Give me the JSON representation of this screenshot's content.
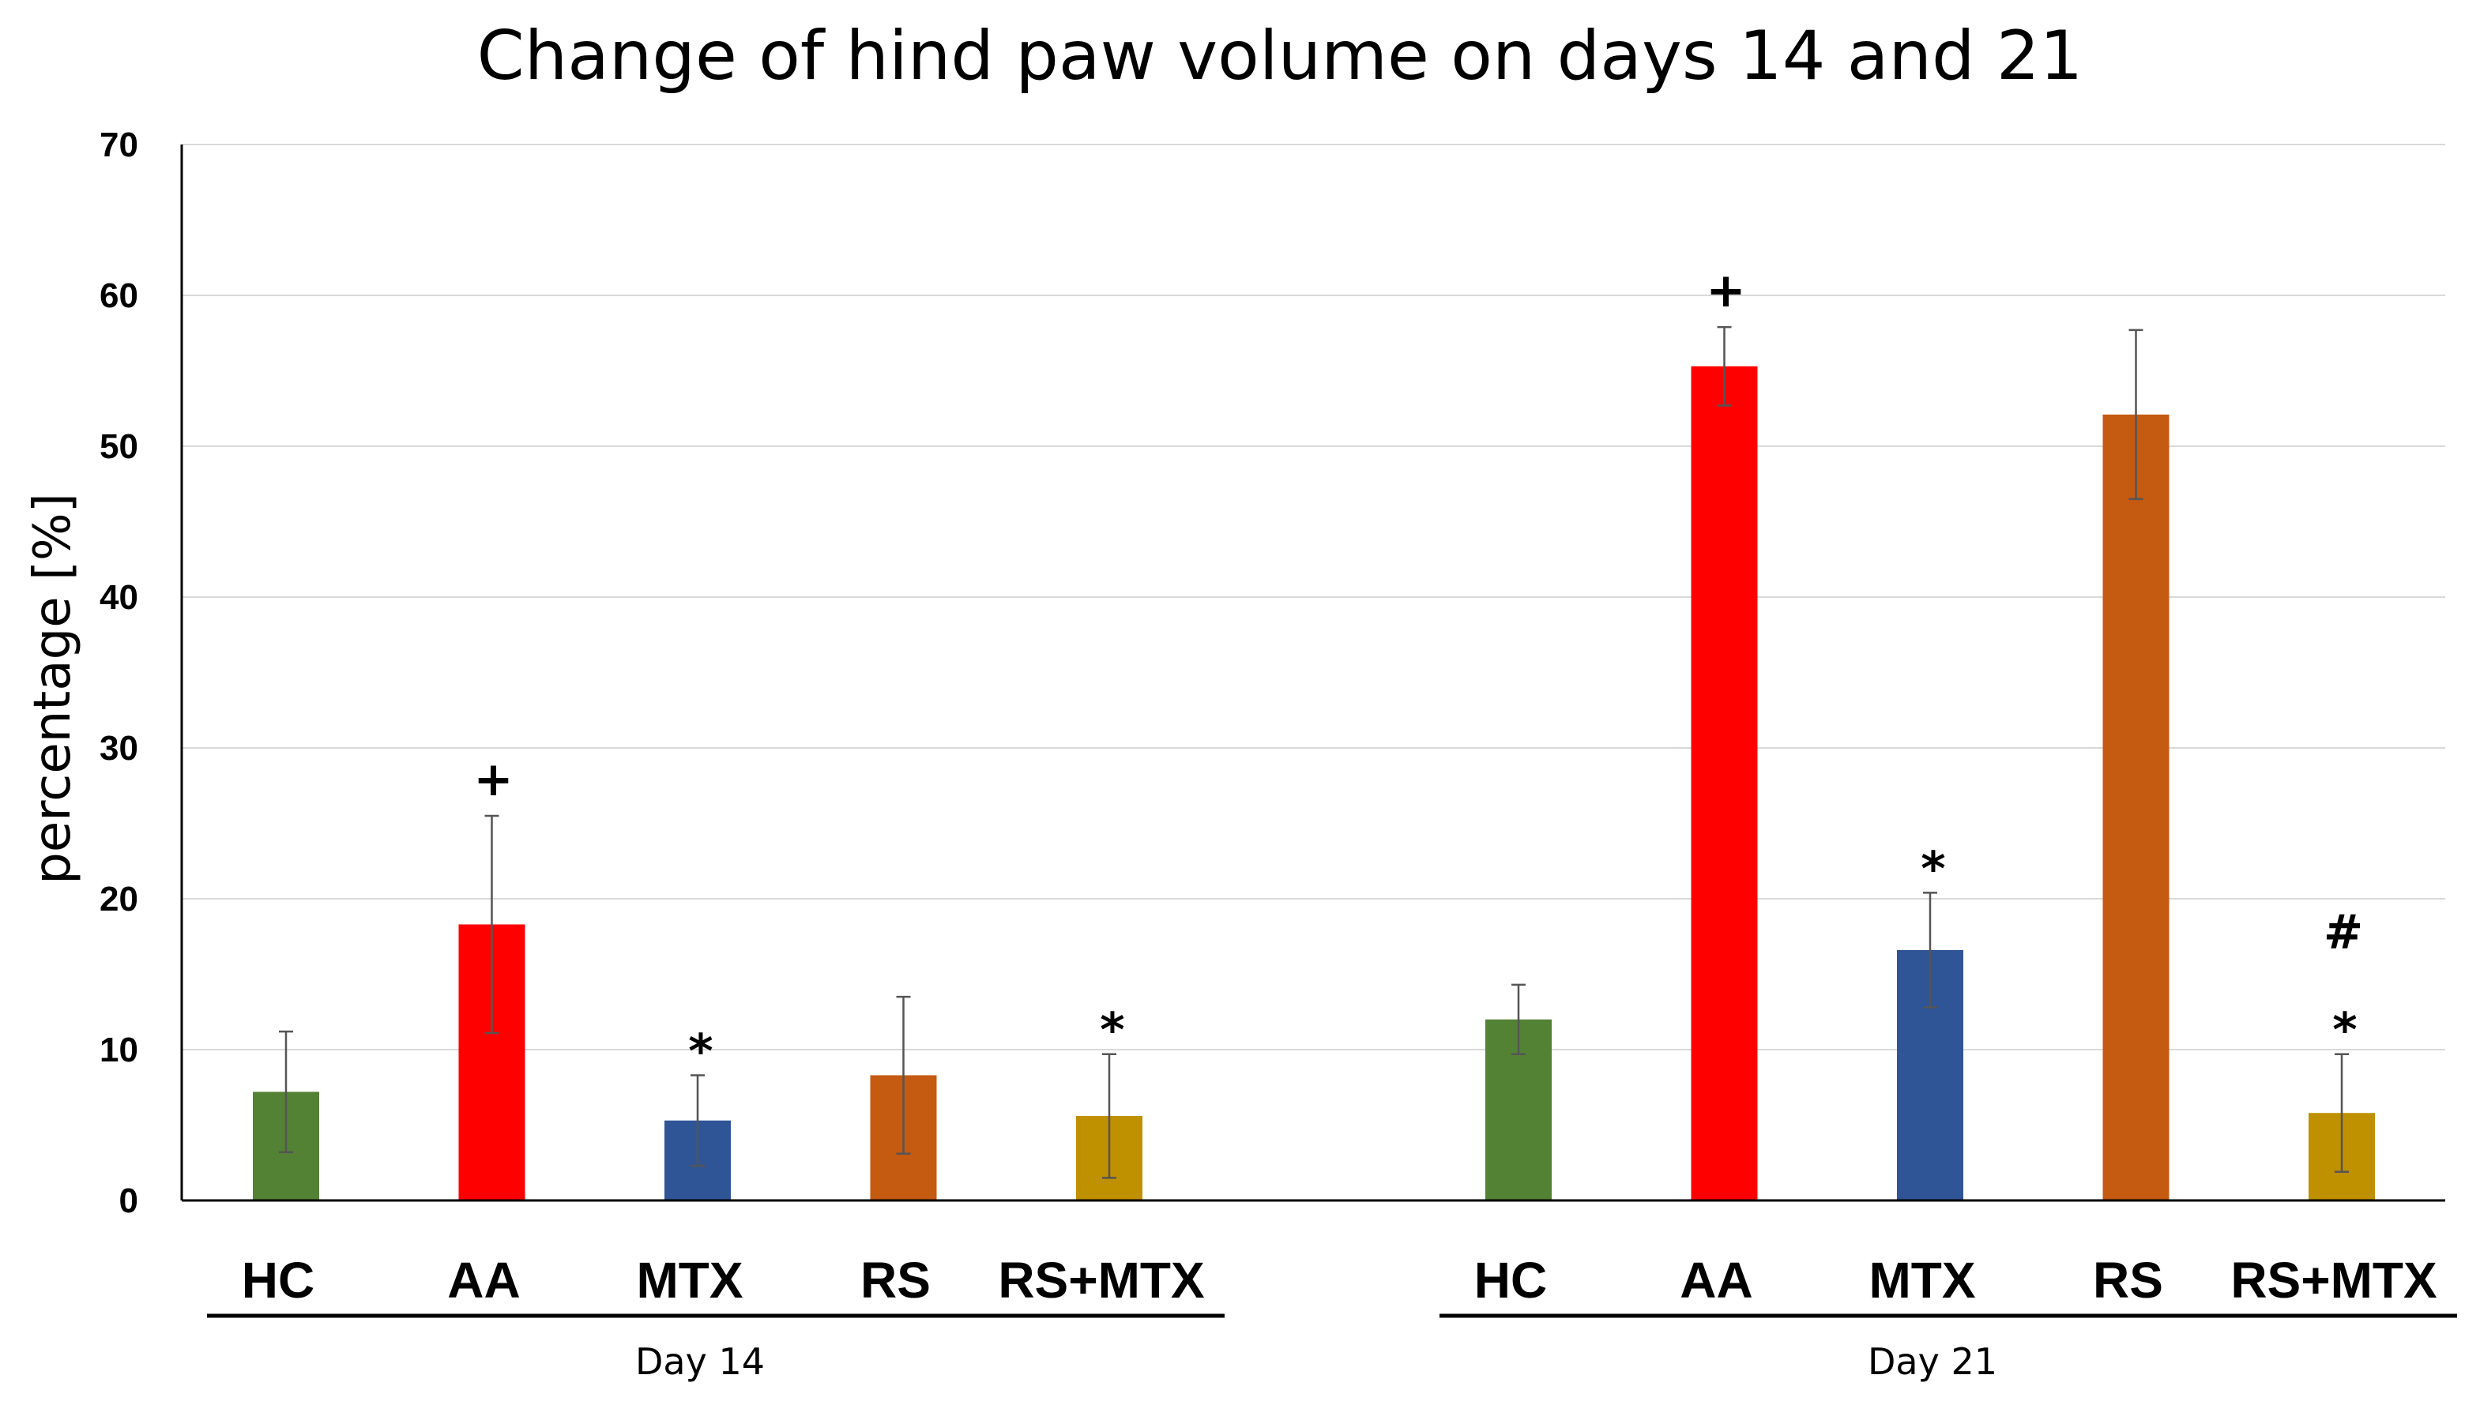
{
  "chart_data": {
    "type": "bar",
    "title": "Change of hind paw volume on days 14 and 21",
    "ylabel": "percentage [%]",
    "xlabel": "",
    "ylim": [
      0,
      70
    ],
    "yticks": [
      0,
      10,
      20,
      30,
      40,
      50,
      60,
      70
    ],
    "grid": true,
    "groups": [
      {
        "label": "Day 14",
        "bars": [
          {
            "category": "HC",
            "value": 7.2,
            "error": 4.0,
            "color": "#548235",
            "marks": []
          },
          {
            "category": "AA",
            "value": 18.3,
            "error": 7.2,
            "color": "#ff0000",
            "marks": [
              "+"
            ]
          },
          {
            "category": "MTX",
            "value": 5.3,
            "error": 3.0,
            "color": "#2f5597",
            "marks": [
              "*"
            ]
          },
          {
            "category": "RS",
            "value": 8.3,
            "error": 5.2,
            "color": "#c55a11",
            "marks": []
          },
          {
            "category": "RS+MTX",
            "value": 5.6,
            "error": 4.1,
            "color": "#bf9000",
            "marks": [
              "*"
            ]
          }
        ]
      },
      {
        "label": "Day 21",
        "bars": [
          {
            "category": "HC",
            "value": 12.0,
            "error": 2.3,
            "color": "#548235",
            "marks": []
          },
          {
            "category": "AA",
            "value": 55.3,
            "error": 2.6,
            "color": "#ff0000",
            "marks": [
              "+"
            ]
          },
          {
            "category": "MTX",
            "value": 16.6,
            "error": 3.8,
            "color": "#2f5597",
            "marks": [
              "*"
            ]
          },
          {
            "category": "RS",
            "value": 52.1,
            "error": 5.6,
            "color": "#c55a11",
            "marks": []
          },
          {
            "category": "RS+MTX",
            "value": 5.8,
            "error": 3.9,
            "color": "#bf9000",
            "marks": [
              "*",
              "#"
            ]
          }
        ]
      }
    ]
  }
}
